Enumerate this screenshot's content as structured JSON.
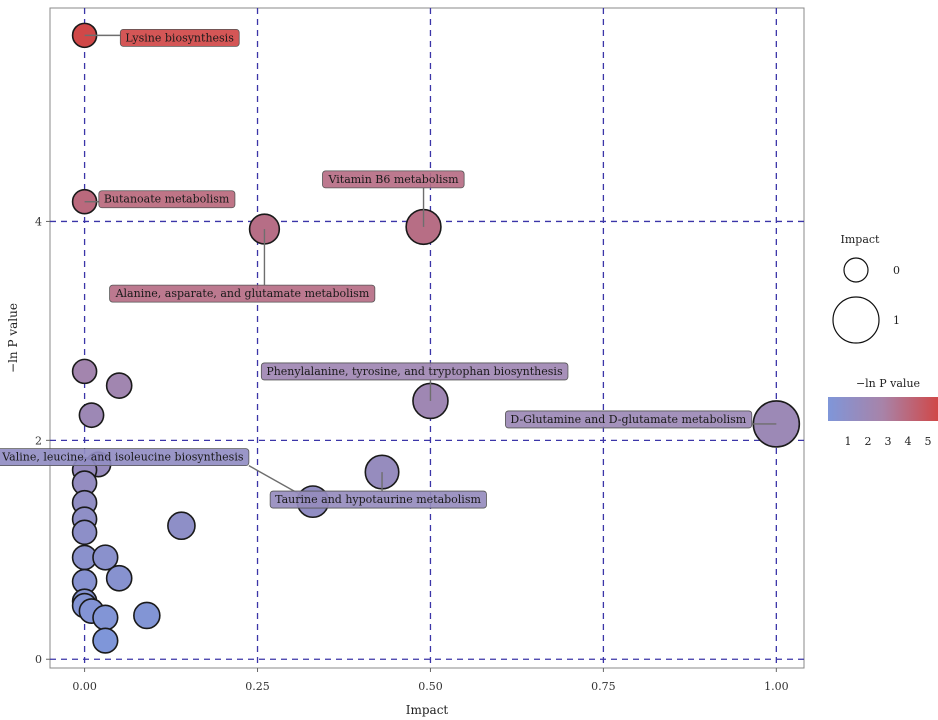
{
  "chart_data": {
    "type": "scatter",
    "xlabel": "Impact",
    "ylabel": "−ln P value",
    "xlim": [
      -0.05,
      1.04
    ],
    "ylim": [
      -0.08,
      5.95
    ],
    "x_ticks": [
      0.0,
      0.25,
      0.5,
      0.75,
      1.0
    ],
    "x_tick_labels": [
      "0.00",
      "0.25",
      "0.50",
      "0.75",
      "1.00"
    ],
    "y_ticks": [
      0,
      2,
      4
    ],
    "y_tick_labels": [
      "0",
      "2",
      "4"
    ],
    "grid": "dashed lines at x and y ticks",
    "size_legend": {
      "title": "Impact",
      "entries": [
        {
          "value": 0,
          "label": "0"
        },
        {
          "value": 1,
          "label": "1"
        }
      ]
    },
    "color_legend": {
      "title": "−ln P value",
      "tick_labels": [
        "1",
        "2",
        "3",
        "4",
        "5"
      ],
      "colors": [
        "#7f96d9",
        "#d04848"
      ]
    },
    "points": [
      {
        "x": 0.0,
        "y": 5.7,
        "label": "Lysine biosynthesis"
      },
      {
        "x": 0.0,
        "y": 4.18,
        "label": "Butanoate metabolism"
      },
      {
        "x": 0.26,
        "y": 3.93,
        "label": "Alanine, asparate, and glutamate metabolism"
      },
      {
        "x": 0.49,
        "y": 3.95,
        "label": "Vitamin B6 metabolism"
      },
      {
        "x": 0.5,
        "y": 2.36,
        "label": "Phenylalanine, tyrosine, and tryptophan biosynthesis"
      },
      {
        "x": 1.0,
        "y": 2.15,
        "label": "D-Glutamine and D-glutamate metabolism"
      },
      {
        "x": 0.33,
        "y": 1.44,
        "label": "Valine, leucine, and isoleucine biosynthesis"
      },
      {
        "x": 0.43,
        "y": 1.71,
        "label": "Taurine and hypotaurine metabolism"
      },
      {
        "x": 0.0,
        "y": 2.63,
        "label": ""
      },
      {
        "x": 0.05,
        "y": 2.5,
        "label": ""
      },
      {
        "x": 0.01,
        "y": 2.23,
        "label": ""
      },
      {
        "x": 0.02,
        "y": 1.78,
        "label": ""
      },
      {
        "x": 0.0,
        "y": 1.73,
        "label": ""
      },
      {
        "x": 0.0,
        "y": 1.61,
        "label": ""
      },
      {
        "x": 0.0,
        "y": 1.43,
        "label": ""
      },
      {
        "x": 0.0,
        "y": 1.28,
        "label": ""
      },
      {
        "x": 0.0,
        "y": 1.16,
        "label": ""
      },
      {
        "x": 0.14,
        "y": 1.22,
        "label": ""
      },
      {
        "x": 0.0,
        "y": 0.93,
        "label": ""
      },
      {
        "x": 0.03,
        "y": 0.93,
        "label": ""
      },
      {
        "x": 0.05,
        "y": 0.74,
        "label": ""
      },
      {
        "x": 0.0,
        "y": 0.71,
        "label": ""
      },
      {
        "x": 0.0,
        "y": 0.53,
        "label": ""
      },
      {
        "x": 0.0,
        "y": 0.49,
        "label": ""
      },
      {
        "x": 0.01,
        "y": 0.44,
        "label": ""
      },
      {
        "x": 0.03,
        "y": 0.38,
        "label": ""
      },
      {
        "x": 0.09,
        "y": 0.4,
        "label": ""
      },
      {
        "x": 0.03,
        "y": 0.17,
        "label": ""
      }
    ]
  }
}
